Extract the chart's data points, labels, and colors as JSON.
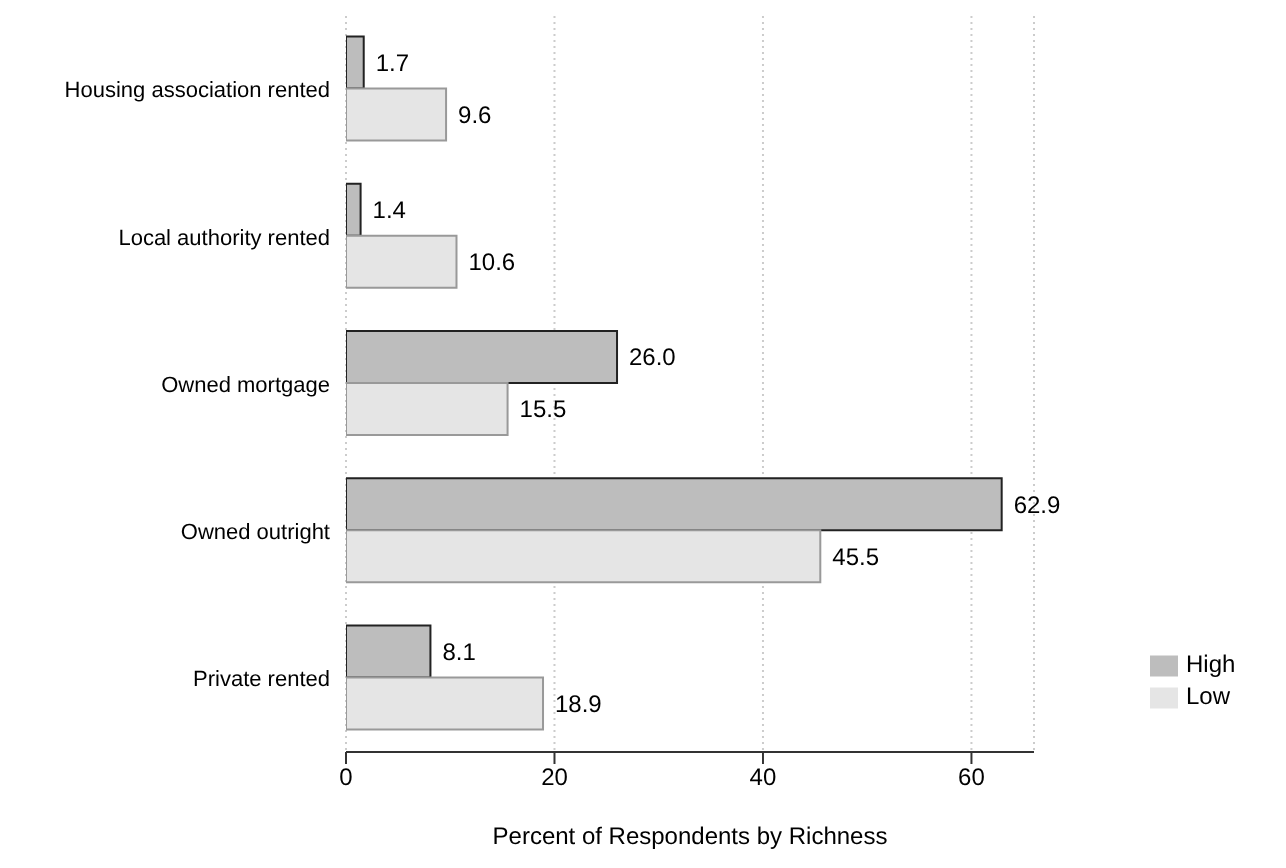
{
  "chart_data": {
    "type": "bar",
    "orientation": "horizontal",
    "xlabel": "Percent of Respondents by Richness",
    "categories": [
      "Housing association rented",
      "Local authority rented",
      "Owned mortgage",
      "Owned outright",
      "Private rented"
    ],
    "series": [
      {
        "name": "High",
        "color": "#bdbdbd",
        "values": [
          1.7,
          1.4,
          26.0,
          62.9,
          8.1
        ],
        "value_labels": [
          "1.7",
          "1.4",
          "26.0",
          "62.9",
          "8.1"
        ]
      },
      {
        "name": "Low",
        "color": "#e5e5e5",
        "values": [
          9.6,
          10.6,
          15.5,
          45.5,
          18.9
        ],
        "value_labels": [
          "9.6",
          "10.6",
          "15.5",
          "45.5",
          "18.9"
        ]
      }
    ],
    "xlim": [
      0,
      66
    ],
    "xticks": [
      0,
      20,
      40,
      60
    ],
    "grid": "x",
    "legend": "bottom right"
  }
}
